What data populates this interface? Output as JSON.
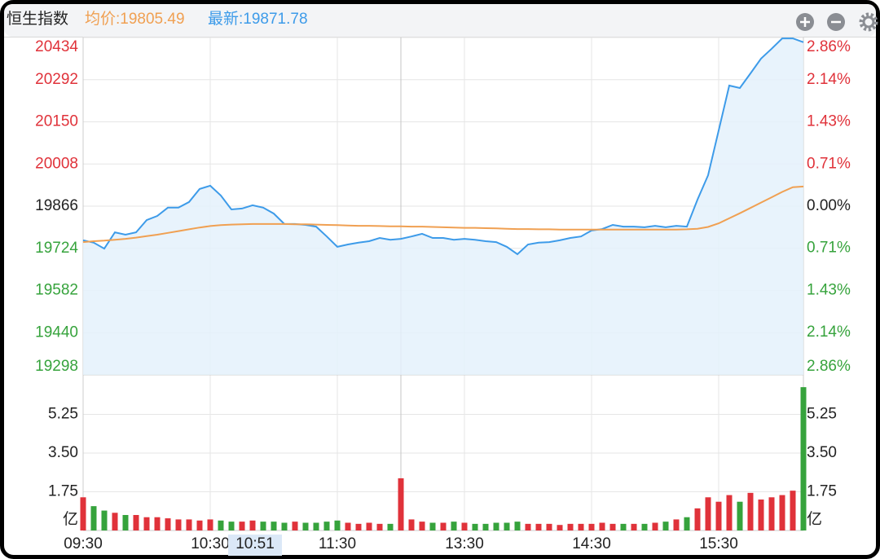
{
  "chart_data": [
    {
      "type": "line",
      "title": "恒生指数",
      "annotations": [
        "均价:19805.49",
        "最新:19871.78",
        "10:51"
      ],
      "categories": [
        "09:30",
        null,
        null,
        null,
        null,
        null,
        null,
        null,
        null,
        null,
        null,
        null,
        "10:30",
        null,
        null,
        null,
        null,
        null,
        null,
        null,
        null,
        null,
        null,
        null,
        "11:30",
        null,
        null,
        null,
        null,
        null,
        null,
        null,
        null,
        null,
        null,
        null,
        "13:30",
        null,
        null,
        null,
        null,
        null,
        null,
        null,
        null,
        null,
        null,
        null,
        "14:30",
        null,
        null,
        null,
        null,
        null,
        null,
        null,
        null,
        null,
        null,
        null,
        "15:30",
        null,
        null,
        null,
        null,
        null,
        null,
        null,
        null
      ],
      "series": [
        {
          "color": "#3d9be9",
          "fill": "#e4f1fc",
          "values": [
            19751,
            19743,
            19723,
            19778,
            19770,
            19778,
            19819,
            19833,
            19861,
            19861,
            19880,
            19924,
            19935,
            19902,
            19855,
            19858,
            19869,
            19861,
            19841,
            19806,
            19806,
            19803,
            19797,
            19764,
            19729,
            19737,
            19743,
            19748,
            19759,
            19753,
            19756,
            19764,
            19773,
            19759,
            19759,
            19753,
            19756,
            19753,
            19748,
            19745,
            19729,
            19704,
            19737,
            19743,
            19745,
            19751,
            19759,
            19764,
            19784,
            19789,
            19803,
            19797,
            19797,
            19795,
            19800,
            19795,
            19800,
            19797,
            19888,
            19970,
            20121,
            20272,
            20264,
            20313,
            20363,
            20396,
            20431,
            20431,
            20418
          ]
        },
        {
          "color": "#f0a052",
          "values": [
            19745,
            19748,
            19750,
            19753,
            19756,
            19760,
            19765,
            19770,
            19776,
            19782,
            19788,
            19794,
            19799,
            19802,
            19804,
            19805,
            19806,
            19806,
            19806,
            19806,
            19805,
            19805,
            19804,
            19803,
            19802,
            19801,
            19800,
            19800,
            19799,
            19798,
            19798,
            19797,
            19797,
            19796,
            19795,
            19794,
            19793,
            19793,
            19792,
            19791,
            19790,
            19789,
            19789,
            19788,
            19788,
            19787,
            19787,
            19787,
            19787,
            19787,
            19787,
            19787,
            19787,
            19787,
            19787,
            19787,
            19787,
            19788,
            19790,
            19796,
            19808,
            19825,
            19842,
            19860,
            19878,
            19896,
            19914,
            19930,
            19932
          ]
        }
      ],
      "ylim": [
        19298,
        20434
      ],
      "yticks": [
        19298,
        19440,
        19582,
        19724,
        19866,
        20008,
        20150,
        20292,
        20434
      ],
      "y2lim": [
        -2.86,
        2.86
      ],
      "y2ticks": [
        {
          "value": -2.86,
          "label": "2.86%"
        },
        {
          "value": -2.14,
          "label": "2.14%"
        },
        {
          "value": -1.43,
          "label": "1.43%"
        },
        {
          "value": -0.71,
          "label": "0.71%"
        },
        {
          "value": 0,
          "label": "0.00%"
        },
        {
          "value": 0.71,
          "label": "0.71%"
        },
        {
          "value": 1.43,
          "label": "1.43%"
        },
        {
          "value": 2.14,
          "label": "2.14%"
        },
        {
          "value": 2.86,
          "label": "2.86%"
        }
      ],
      "up_color": "#e0323a",
      "down_color": "#36a33c",
      "flat_color": "#222222",
      "grid": true
    },
    {
      "type": "bar",
      "values": [
        1.5,
        1.1,
        0.9,
        0.8,
        0.7,
        0.7,
        0.6,
        0.6,
        0.55,
        0.5,
        0.5,
        0.45,
        0.5,
        0.45,
        0.4,
        0.4,
        0.45,
        0.4,
        0.4,
        0.35,
        0.4,
        0.35,
        0.35,
        0.4,
        0.45,
        0.35,
        0.3,
        0.35,
        0.3,
        0.3,
        2.36,
        0.5,
        0.4,
        0.35,
        0.35,
        0.4,
        0.35,
        0.3,
        0.3,
        0.35,
        0.35,
        0.4,
        0.3,
        0.3,
        0.3,
        0.25,
        0.3,
        0.3,
        0.3,
        0.35,
        0.3,
        0.3,
        0.3,
        0.3,
        0.35,
        0.4,
        0.5,
        0.6,
        1.0,
        1.5,
        1.3,
        1.6,
        1.3,
        1.7,
        1.4,
        1.5,
        1.6,
        1.8,
        6.48
      ],
      "ylim": [
        0,
        7
      ],
      "yticks": [
        {
          "value": 0,
          "label": "亿"
        },
        1.75,
        {
          "value": 3.5,
          "label": "3.50"
        },
        5.25
      ],
      "grid": true
    }
  ]
}
